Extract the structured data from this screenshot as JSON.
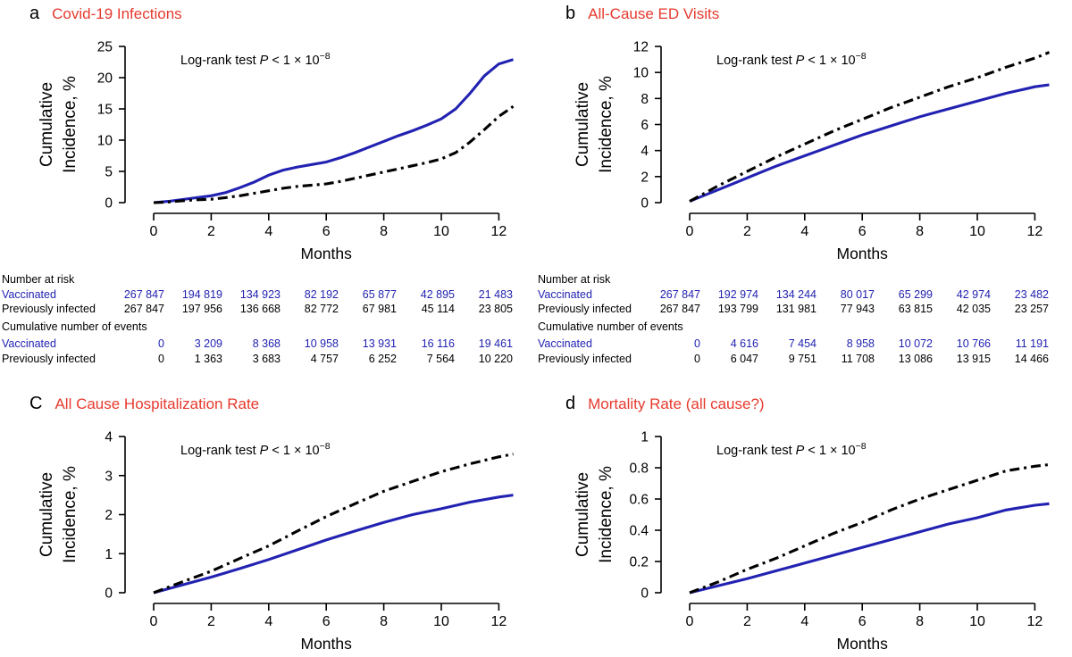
{
  "figure": {
    "x_label": "Months",
    "y_label_line1": "Cumulative",
    "y_label_line2": "Incidence, %",
    "risk_header": "Number at risk",
    "events_header": "Cumulative number of events",
    "series_labels": {
      "vaccinated": "Vaccinated",
      "previously_infected": "Previously infected"
    },
    "annotation_parts": {
      "prefix": "Log-rank test ",
      "p": "P",
      "comparison": " < 1 × 10",
      "exponent": "−8"
    },
    "colors": {
      "vaccinated_blue": "#2222b2",
      "previously_infected_black": "#000000",
      "title_red": "#e63a2e"
    }
  },
  "chart_data": [
    {
      "panel": "a",
      "title": "Covid-19 Infections",
      "type": "line",
      "xlabel": "Months",
      "ylabel": "Cumulative Incidence, %",
      "annotation": "Log-rank test P < 1 × 10⁻⁸",
      "xlim": [
        0,
        12.5
      ],
      "ylim": [
        0,
        25
      ],
      "xticks": [
        0,
        2,
        4,
        6,
        8,
        10,
        12
      ],
      "yticks": [
        0,
        5,
        10,
        15,
        20,
        25
      ],
      "series": [
        {
          "name": "Vaccinated",
          "style": "solid",
          "color": "#2222b2",
          "x": [
            0,
            0.5,
            1,
            1.5,
            2,
            2.5,
            3,
            3.5,
            4,
            4.5,
            5,
            5.5,
            6,
            6.5,
            7,
            7.5,
            8,
            8.5,
            9,
            9.5,
            10,
            10.5,
            11,
            11.5,
            12,
            12.5
          ],
          "y": [
            0,
            0.2,
            0.5,
            0.8,
            1.1,
            1.6,
            2.4,
            3.3,
            4.4,
            5.2,
            5.7,
            6.1,
            6.5,
            7.2,
            8.0,
            8.9,
            9.8,
            10.7,
            11.5,
            12.4,
            13.4,
            15.0,
            17.5,
            20.3,
            22.2,
            22.9
          ]
        },
        {
          "name": "Previously infected",
          "style": "dash-dot",
          "color": "#000000",
          "x": [
            0,
            0.5,
            1,
            1.5,
            2,
            2.5,
            3,
            3.5,
            4,
            4.5,
            5,
            5.5,
            6,
            6.5,
            7,
            7.5,
            8,
            8.5,
            9,
            9.5,
            10,
            10.5,
            11,
            11.5,
            12,
            12.5
          ],
          "y": [
            0,
            0.1,
            0.3,
            0.45,
            0.55,
            0.8,
            1.1,
            1.5,
            1.9,
            2.3,
            2.6,
            2.8,
            3.0,
            3.4,
            3.9,
            4.4,
            4.9,
            5.4,
            5.9,
            6.4,
            7.0,
            8.0,
            9.7,
            11.7,
            13.8,
            15.4
          ]
        }
      ],
      "number_at_risk": {
        "months": [
          0,
          2,
          4,
          6,
          8,
          10,
          12
        ],
        "vaccinated": [
          "267 847",
          "194 819",
          "134 923",
          "82 192",
          "65 877",
          "42 895",
          "21 483"
        ],
        "previously_infected": [
          "267 847",
          "197 956",
          "136 668",
          "82 772",
          "67 981",
          "45 114",
          "23 805"
        ]
      },
      "cumulative_events": {
        "months": [
          0,
          2,
          4,
          6,
          8,
          10,
          12
        ],
        "vaccinated": [
          "0",
          "3 209",
          "8 368",
          "10 958",
          "13 931",
          "16 116",
          "19 461"
        ],
        "previously_infected": [
          "0",
          "1 363",
          "3 683",
          "4 757",
          "6 252",
          "7 564",
          "10 220"
        ]
      }
    },
    {
      "panel": "b",
      "title": "All-Cause ED Visits",
      "type": "line",
      "xlabel": "Months",
      "ylabel": "Cumulative Incidence, %",
      "annotation": "Log-rank test P < 1 × 10⁻⁸",
      "xlim": [
        0,
        12.5
      ],
      "ylim": [
        0,
        12
      ],
      "xticks": [
        0,
        2,
        4,
        6,
        8,
        10,
        12
      ],
      "yticks": [
        0,
        2,
        4,
        6,
        8,
        10,
        12
      ],
      "series": [
        {
          "name": "Vaccinated",
          "style": "solid",
          "color": "#2222b2",
          "x": [
            0,
            0.5,
            1,
            1.5,
            2,
            2.5,
            3,
            3.5,
            4,
            4.5,
            5,
            5.5,
            6,
            6.5,
            7,
            7.5,
            8,
            8.5,
            9,
            9.5,
            10,
            10.5,
            11,
            11.5,
            12,
            12.5
          ],
          "y": [
            0.1,
            0.55,
            1.0,
            1.45,
            1.9,
            2.35,
            2.8,
            3.2,
            3.6,
            4.0,
            4.4,
            4.8,
            5.2,
            5.55,
            5.9,
            6.25,
            6.6,
            6.9,
            7.2,
            7.5,
            7.8,
            8.1,
            8.4,
            8.65,
            8.9,
            9.05
          ]
        },
        {
          "name": "Previously infected",
          "style": "dash-dot",
          "color": "#000000",
          "x": [
            0,
            0.5,
            1,
            1.5,
            2,
            2.5,
            3,
            3.5,
            4,
            4.5,
            5,
            5.5,
            6,
            6.5,
            7,
            7.5,
            8,
            8.5,
            9,
            9.5,
            10,
            10.5,
            11,
            11.5,
            12,
            12.5
          ],
          "y": [
            0.1,
            0.7,
            1.3,
            1.85,
            2.4,
            2.95,
            3.5,
            4.0,
            4.5,
            5.0,
            5.5,
            5.95,
            6.4,
            6.85,
            7.3,
            7.7,
            8.1,
            8.5,
            8.9,
            9.25,
            9.6,
            10.0,
            10.4,
            10.75,
            11.1,
            11.55
          ]
        }
      ],
      "number_at_risk": {
        "months": [
          0,
          2,
          4,
          6,
          8,
          10,
          12
        ],
        "vaccinated": [
          "267 847",
          "192 974",
          "134 244",
          "80 017",
          "65 299",
          "42 974",
          "23 482"
        ],
        "previously_infected": [
          "267 847",
          "193 799",
          "131 981",
          "77 943",
          "63 815",
          "42 035",
          "23 257"
        ]
      },
      "cumulative_events": {
        "months": [
          0,
          2,
          4,
          6,
          8,
          10,
          12
        ],
        "vaccinated": [
          "0",
          "4 616",
          "7 454",
          "8 958",
          "10 072",
          "10 766",
          "11 191"
        ],
        "previously_infected": [
          "0",
          "6 047",
          "9 751",
          "11 708",
          "13 086",
          "13 915",
          "14 466"
        ]
      }
    },
    {
      "panel": "C",
      "title": "All Cause Hospitalization Rate",
      "type": "line",
      "xlabel": "Months",
      "ylabel": "Cumulative Incidence, %",
      "annotation": "Log-rank test P < 1 × 10⁻⁸",
      "xlim": [
        0,
        12.5
      ],
      "ylim": [
        0,
        4
      ],
      "xticks": [
        0,
        2,
        4,
        6,
        8,
        10,
        12
      ],
      "yticks": [
        0,
        1,
        2,
        3,
        4
      ],
      "series": [
        {
          "name": "Vaccinated",
          "style": "solid",
          "color": "#2222b2",
          "x": [
            0,
            1,
            2,
            3,
            4,
            5,
            6,
            7,
            8,
            9,
            10,
            11,
            12,
            12.5
          ],
          "y": [
            0,
            0.2,
            0.4,
            0.62,
            0.85,
            1.1,
            1.35,
            1.58,
            1.8,
            2.0,
            2.15,
            2.32,
            2.45,
            2.5
          ]
        },
        {
          "name": "Previously infected",
          "style": "dash-dot",
          "color": "#000000",
          "x": [
            0,
            1,
            2,
            3,
            4,
            5,
            6,
            7,
            8,
            9,
            10,
            11,
            12,
            12.5
          ],
          "y": [
            0,
            0.28,
            0.55,
            0.88,
            1.2,
            1.58,
            1.95,
            2.28,
            2.6,
            2.85,
            3.1,
            3.3,
            3.48,
            3.55
          ]
        }
      ]
    },
    {
      "panel": "d",
      "title": "Mortality Rate (all cause?)",
      "type": "line",
      "xlabel": "Months",
      "ylabel": "Cumulative Incidence, %",
      "annotation": "Log-rank test P < 1 × 10⁻⁸",
      "xlim": [
        0,
        12.5
      ],
      "ylim": [
        0,
        1
      ],
      "xticks": [
        0,
        2,
        4,
        6,
        8,
        10,
        12
      ],
      "yticks": [
        0,
        0.2,
        0.4,
        0.6,
        0.8,
        1
      ],
      "series": [
        {
          "name": "Vaccinated",
          "style": "solid",
          "color": "#2222b2",
          "x": [
            0,
            1,
            2,
            3,
            4,
            5,
            6,
            7,
            8,
            9,
            10,
            11,
            12,
            12.5
          ],
          "y": [
            0,
            0.045,
            0.09,
            0.14,
            0.19,
            0.24,
            0.29,
            0.34,
            0.39,
            0.44,
            0.48,
            0.53,
            0.56,
            0.57
          ]
        },
        {
          "name": "Previously infected",
          "style": "dash-dot",
          "color": "#000000",
          "x": [
            0,
            1,
            2,
            3,
            4,
            5,
            6,
            7,
            8,
            9,
            10,
            11,
            12,
            12.5
          ],
          "y": [
            0,
            0.07,
            0.15,
            0.22,
            0.3,
            0.38,
            0.45,
            0.53,
            0.6,
            0.66,
            0.72,
            0.78,
            0.81,
            0.82
          ]
        }
      ]
    }
  ]
}
